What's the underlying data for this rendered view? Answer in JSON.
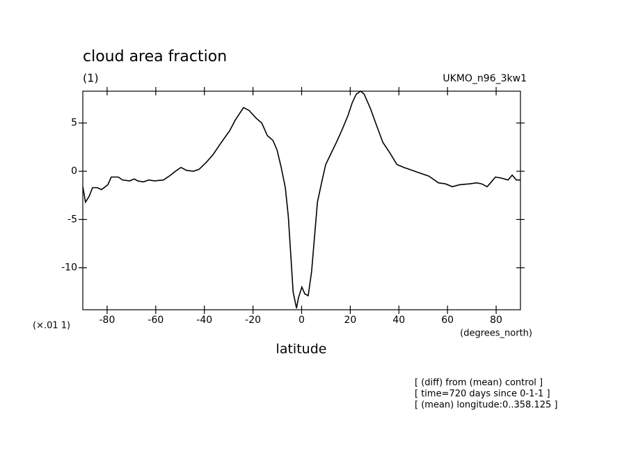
{
  "chart_data": {
    "type": "line",
    "title": "cloud area fraction",
    "subtitle": "(1)",
    "dataset_label": "UKMO_n96_3kw1",
    "y_scale_label": "(×.01 1)",
    "x_unit_label": "(degrees_north)",
    "x_label": "latitude",
    "annotations": [
      "[ (diff) from (mean) control ]",
      "[ time=720 days since 0-1-1 ]",
      "[ (mean) longitude:0..358.125 ]"
    ],
    "xlim": [
      -90,
      90
    ],
    "ylim": [
      -14.35,
      8.3
    ],
    "xticks": [
      -80,
      -60,
      -40,
      -20,
      0,
      20,
      40,
      60,
      80
    ],
    "yticks": [
      -10,
      -5,
      0,
      5
    ],
    "color": "#000000",
    "x": [
      -90,
      -88.9,
      -87.4,
      -86,
      -84,
      -82.3,
      -79.7,
      -78.3,
      -75.4,
      -73.7,
      -70.8,
      -68.8,
      -67.4,
      -65.1,
      -62.8,
      -60.5,
      -56.8,
      -53.9,
      -51.9,
      -49.6,
      -47.4,
      -44.5,
      -42.2,
      -39.3,
      -36.5,
      -33,
      -29.6,
      -27.3,
      -23.9,
      -21.6,
      -18.7,
      -16.4,
      -14.1,
      -11.8,
      -10.1,
      -8.4,
      -6.7,
      -5.5,
      -4.4,
      -3.5,
      -2.1,
      -1.3,
      0.1,
      1.3,
      2.7,
      4.1,
      5.3,
      6.5,
      8.2,
      9.9,
      12.2,
      14.5,
      16.8,
      19.1,
      20.8,
      22.5,
      24.3,
      25.7,
      28.3,
      30.6,
      33.4,
      36.3,
      39.2,
      42,
      44.3,
      47.7,
      52.3,
      56.3,
      59.1,
      62,
      64.9,
      69.2,
      72,
      74,
      76.3,
      77.7,
      79.7,
      82,
      84.9,
      86.6,
      88.3,
      90
    ],
    "values": [
      -1.6,
      -3.2,
      -2.6,
      -1.7,
      -1.7,
      -1.9,
      -1.4,
      -0.6,
      -0.6,
      -0.9,
      -1.0,
      -0.8,
      -1.0,
      -1.1,
      -0.9,
      -1.0,
      -0.9,
      -0.4,
      0,
      0.4,
      0.1,
      0.0,
      0.2,
      0.9,
      1.7,
      3.0,
      4.2,
      5.3,
      6.6,
      6.3,
      5.5,
      5.0,
      3.7,
      3.2,
      2.2,
      0.4,
      -1.7,
      -4.6,
      -8.9,
      -12.5,
      -14.2,
      -13.1,
      -12.0,
      -12.7,
      -12.9,
      -10.4,
      -6.8,
      -3.2,
      -1.2,
      0.7,
      1.9,
      3.1,
      4.4,
      5.8,
      7.1,
      8.0,
      8.3,
      8.0,
      6.5,
      4.9,
      3.0,
      1.9,
      0.7,
      0.4,
      0.2,
      -0.1,
      -0.5,
      -1.2,
      -1.3,
      -1.6,
      -1.4,
      -1.3,
      -1.2,
      -1.3,
      -1.6,
      -1.2,
      -0.6,
      -0.7,
      -0.9,
      -0.4,
      -0.9,
      -0.9
    ]
  }
}
